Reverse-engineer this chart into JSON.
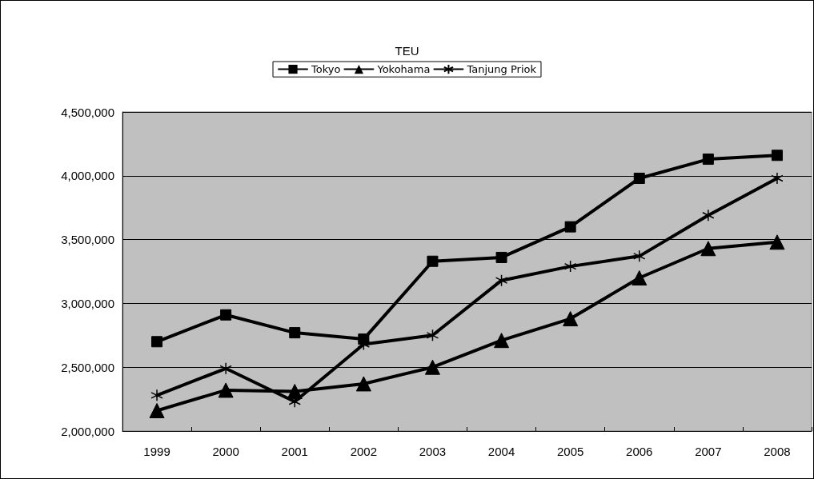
{
  "chart_data": {
    "type": "line",
    "title": "TEU",
    "categories": [
      "1999",
      "2000",
      "2001",
      "2002",
      "2003",
      "2004",
      "2005",
      "2006",
      "2007",
      "2008"
    ],
    "series": [
      {
        "name": "Tokyo",
        "color": "#000000",
        "marker": "square",
        "values": [
          2700000,
          2910000,
          2770000,
          2720000,
          3330000,
          3360000,
          3600000,
          3980000,
          4130000,
          4160000
        ]
      },
      {
        "name": "Yokohama",
        "color": "#000000",
        "marker": "triangle",
        "values": [
          2160000,
          2320000,
          2310000,
          2370000,
          2500000,
          2710000,
          2880000,
          3200000,
          3430000,
          3480000
        ]
      },
      {
        "name": "Tanjung Priok",
        "color": "#000000",
        "marker": "cross",
        "values": [
          2280000,
          2490000,
          2230000,
          2680000,
          2750000,
          3180000,
          3290000,
          3370000,
          3690000,
          3980000
        ]
      }
    ],
    "ylim": [
      2000000,
      4500000
    ],
    "yticks": [
      {
        "value": 2000000,
        "label": "2,000,000"
      },
      {
        "value": 2500000,
        "label": "2,500,000"
      },
      {
        "value": 3000000,
        "label": "3,000,000"
      },
      {
        "value": 3500000,
        "label": "3,500,000"
      },
      {
        "value": 4000000,
        "label": "4,000,000"
      },
      {
        "value": 4500000,
        "label": "4,500,000"
      }
    ],
    "grid": "y",
    "legend": "top",
    "line_style": "solid"
  }
}
